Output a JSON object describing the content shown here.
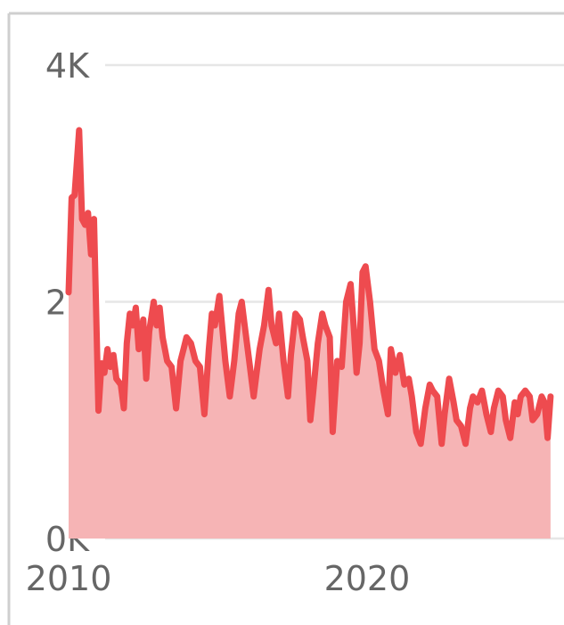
{
  "chart_data": {
    "type": "area",
    "title": "",
    "xlabel": "",
    "ylabel": "",
    "x_unit": "year",
    "xlim": [
      2007.7,
      2026.6
    ],
    "ylim": [
      0,
      4000
    ],
    "x_ticks": [
      {
        "value": 2010,
        "label": "2010"
      },
      {
        "value": 2020,
        "label": "2020"
      }
    ],
    "y_ticks": [
      {
        "value": 0,
        "label": "0K"
      },
      {
        "value": 2000,
        "label": "2K"
      },
      {
        "value": 4000,
        "label": "4K"
      }
    ],
    "grid": "horizontal",
    "legend": "none",
    "colors": {
      "line": "#ee4b4f",
      "fill": "#f6b4b5",
      "grid": "#e6e6e6",
      "tick_text": "#666666",
      "frame": "#cfcfcf"
    },
    "series": [
      {
        "x": [
          2010.0,
          2010.1,
          2010.2,
          2010.35,
          2010.45,
          2010.55,
          2010.65,
          2010.75,
          2010.85,
          2011.0,
          2011.1,
          2011.2,
          2011.3,
          2011.4,
          2011.5,
          2011.6,
          2011.75,
          2011.85,
          2011.95,
          2012.05,
          2012.15,
          2012.25,
          2012.35,
          2012.5,
          2012.6,
          2012.7,
          2012.85,
          2012.95,
          2013.05,
          2013.15,
          2013.3,
          2013.45,
          2013.6,
          2013.75,
          2013.85,
          2013.95,
          2014.1,
          2014.25,
          2014.4,
          2014.55,
          2014.7,
          2014.8,
          2014.9,
          2015.05,
          2015.25,
          2015.4,
          2015.55,
          2015.7,
          2015.8,
          2015.9,
          2016.05,
          2016.2,
          2016.3,
          2016.4,
          2016.55,
          2016.7,
          2016.8,
          2016.95,
          2017.05,
          2017.2,
          2017.35,
          2017.45,
          2017.6,
          2017.75,
          2017.85,
          2018.0,
          2018.1,
          2018.2,
          2018.35,
          2018.5,
          2018.6,
          2018.75,
          2018.85,
          2019.0,
          2019.15,
          2019.3,
          2019.45,
          2019.55,
          2019.65,
          2019.75,
          2019.85,
          2019.95,
          2020.1,
          2020.25,
          2020.4,
          2020.55,
          2020.7,
          2020.8,
          2020.95,
          2021.1,
          2021.25,
          2021.4,
          2021.5,
          2021.65,
          2021.8,
          2021.95,
          2022.1,
          2022.2,
          2022.35,
          2022.5,
          2022.6,
          2022.75,
          2022.9,
          2023.0,
          2023.15,
          2023.3,
          2023.45,
          2023.55,
          2023.7,
          2023.85,
          2024.0,
          2024.15,
          2024.25,
          2024.4,
          2024.55,
          2024.65,
          2024.8,
          2024.95,
          2025.05,
          2025.15,
          2025.3,
          2025.45,
          2025.55,
          2025.7,
          2025.85,
          2025.95,
          2026.05,
          2026.15
        ],
        "values": [
          2080,
          2880,
          2900,
          3450,
          2700,
          2650,
          2750,
          2400,
          2700,
          1080,
          1480,
          1400,
          1600,
          1450,
          1550,
          1350,
          1300,
          1100,
          1650,
          1900,
          1800,
          1950,
          1600,
          1850,
          1350,
          1750,
          2000,
          1800,
          1950,
          1700,
          1500,
          1450,
          1100,
          1500,
          1600,
          1700,
          1650,
          1500,
          1450,
          1050,
          1600,
          1900,
          1800,
          2050,
          1500,
          1200,
          1500,
          1900,
          2000,
          1800,
          1500,
          1200,
          1400,
          1600,
          1800,
          2100,
          1800,
          1650,
          1900,
          1500,
          1200,
          1550,
          1900,
          1850,
          1700,
          1500,
          1000,
          1250,
          1650,
          1900,
          1800,
          1700,
          900,
          1500,
          1450,
          2000,
          2150,
          1800,
          1400,
          1650,
          2250,
          2300,
          2000,
          1600,
          1500,
          1250,
          1050,
          1600,
          1400,
          1550,
          1300,
          1350,
          1200,
          900,
          800,
          1100,
          1300,
          1250,
          1200,
          800,
          1050,
          1350,
          1150,
          1000,
          950,
          800,
          1100,
          1200,
          1150,
          1250,
          1050,
          900,
          1100,
          1250,
          1200,
          1000,
          850,
          1150,
          1050,
          1200,
          1250,
          1200,
          1000,
          1050,
          1200,
          1150,
          850,
          1200
        ]
      }
    ]
  }
}
